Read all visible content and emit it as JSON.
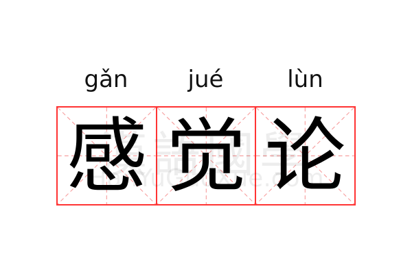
{
  "entries": [
    {
      "pinyin": "gǎn",
      "char": "感"
    },
    {
      "pinyin": "jué",
      "char": "觉"
    },
    {
      "pinyin": "lùn",
      "char": "论"
    }
  ],
  "watermark": {
    "cn": "漢語國學",
    "en": "HanYuGuoXue.com"
  },
  "colors": {
    "border": "#ff3333",
    "guide": "#f7a0a0",
    "text": "#000000"
  }
}
